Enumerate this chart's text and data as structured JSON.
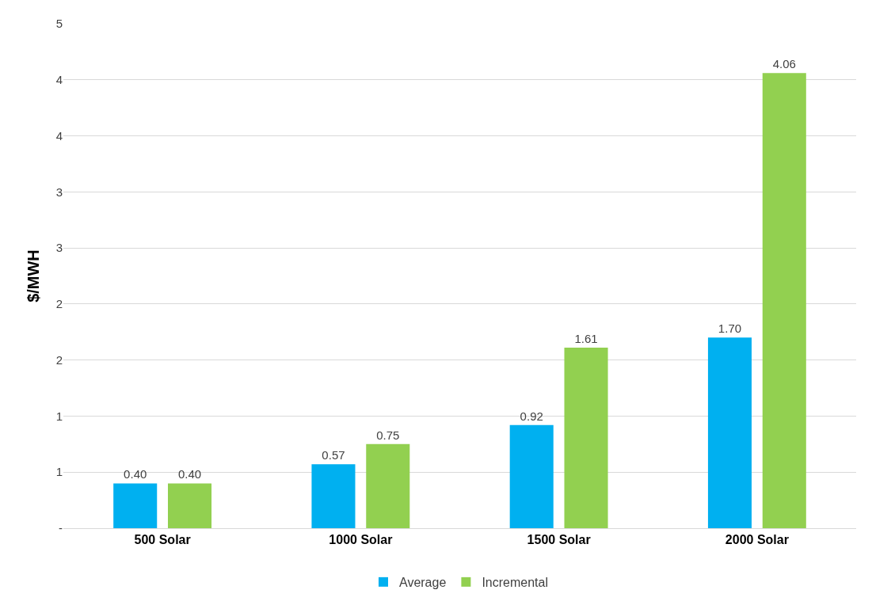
{
  "chart_data": {
    "type": "bar",
    "ylabel": "$/MWH",
    "categories": [
      "500 Solar",
      "1000 Solar",
      "1500 Solar",
      "2000 Solar"
    ],
    "series": [
      {
        "name": "Average",
        "color": "#00b0f0",
        "values": [
          0.4,
          0.57,
          0.92,
          1.7
        ],
        "value_labels": [
          "0.40",
          "0.57",
          "0.92",
          "1.70"
        ]
      },
      {
        "name": "Incremental",
        "color": "#92d050",
        "values": [
          0.4,
          0.75,
          1.61,
          4.06
        ],
        "value_labels": [
          "0.40",
          "0.75",
          "1.61",
          "4.06"
        ]
      }
    ],
    "ylim": [
      0,
      4.5
    ],
    "yticks": [
      {
        "value": 0,
        "label": "-"
      },
      {
        "value": 0.5,
        "label": "1"
      },
      {
        "value": 1,
        "label": "1"
      },
      {
        "value": 1.5,
        "label": "2"
      },
      {
        "value": 2,
        "label": "2"
      },
      {
        "value": 2.5,
        "label": "3"
      },
      {
        "value": 3,
        "label": "3"
      },
      {
        "value": 3.5,
        "label": "4"
      },
      {
        "value": 4,
        "label": "4"
      },
      {
        "value": 4.5,
        "label": "5"
      }
    ],
    "grid": "y",
    "legend": "bottom"
  }
}
